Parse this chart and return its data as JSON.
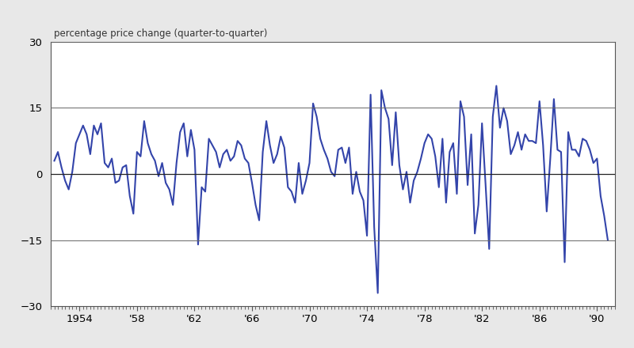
{
  "title": "percentage price change (quarter-to-quarter)",
  "xlim": [
    1952.0,
    1991.25
  ],
  "ylim": [
    -30,
    30
  ],
  "yticks": [
    -30,
    -15,
    0,
    15,
    30
  ],
  "xtick_labels": [
    "1954",
    "'58",
    "'62",
    "'66",
    "'70",
    "'74",
    "'78",
    "'82",
    "'86",
    "'90"
  ],
  "xtick_positions": [
    1954,
    1958,
    1962,
    1966,
    1970,
    1974,
    1978,
    1982,
    1986,
    1990
  ],
  "line_color": "#3344aa",
  "line_width": 1.5,
  "background_color": "#ffffff",
  "fig_background": "#e8e8e8",
  "quarters": [
    1952.25,
    1952.5,
    1952.75,
    1953.0,
    1953.25,
    1953.5,
    1953.75,
    1954.0,
    1954.25,
    1954.5,
    1954.75,
    1955.0,
    1955.25,
    1955.5,
    1955.75,
    1956.0,
    1956.25,
    1956.5,
    1956.75,
    1957.0,
    1957.25,
    1957.5,
    1957.75,
    1958.0,
    1958.25,
    1958.5,
    1958.75,
    1959.0,
    1959.25,
    1959.5,
    1959.75,
    1960.0,
    1960.25,
    1960.5,
    1960.75,
    1961.0,
    1961.25,
    1961.5,
    1961.75,
    1962.0,
    1962.25,
    1962.5,
    1962.75,
    1963.0,
    1963.25,
    1963.5,
    1963.75,
    1964.0,
    1964.25,
    1964.5,
    1964.75,
    1965.0,
    1965.25,
    1965.5,
    1965.75,
    1966.0,
    1966.25,
    1966.5,
    1966.75,
    1967.0,
    1967.25,
    1967.5,
    1967.75,
    1968.0,
    1968.25,
    1968.5,
    1968.75,
    1969.0,
    1969.25,
    1969.5,
    1969.75,
    1970.0,
    1970.25,
    1970.5,
    1970.75,
    1971.0,
    1971.25,
    1971.5,
    1971.75,
    1972.0,
    1972.25,
    1972.5,
    1972.75,
    1973.0,
    1973.25,
    1973.5,
    1973.75,
    1974.0,
    1974.25,
    1974.5,
    1974.75,
    1975.0,
    1975.25,
    1975.5,
    1975.75,
    1976.0,
    1976.25,
    1976.5,
    1976.75,
    1977.0,
    1977.25,
    1977.5,
    1977.75,
    1978.0,
    1978.25,
    1978.5,
    1978.75,
    1979.0,
    1979.25,
    1979.5,
    1979.75,
    1980.0,
    1980.25,
    1980.5,
    1980.75,
    1981.0,
    1981.25,
    1981.5,
    1981.75,
    1982.0,
    1982.25,
    1982.5,
    1982.75,
    1983.0,
    1983.25,
    1983.5,
    1983.75,
    1984.0,
    1984.25,
    1984.5,
    1984.75,
    1985.0,
    1985.25,
    1985.5,
    1985.75,
    1986.0,
    1986.25,
    1986.5,
    1986.75,
    1987.0,
    1987.25,
    1987.5,
    1987.75,
    1988.0,
    1988.25,
    1988.5,
    1988.75,
    1989.0,
    1989.25,
    1989.5,
    1989.75,
    1990.0,
    1990.25,
    1990.5,
    1990.75
  ],
  "values": [
    3.0,
    5.0,
    1.5,
    -1.5,
    -3.5,
    0.5,
    7.0,
    9.0,
    11.0,
    9.0,
    4.5,
    11.0,
    9.0,
    11.5,
    2.5,
    1.5,
    3.5,
    -2.0,
    -1.5,
    1.5,
    2.0,
    -5.0,
    -9.0,
    5.0,
    4.0,
    12.0,
    7.0,
    4.5,
    3.0,
    -0.5,
    2.5,
    -2.0,
    -3.5,
    -7.0,
    2.5,
    9.5,
    11.5,
    4.0,
    10.0,
    5.5,
    -16.0,
    -3.0,
    -4.0,
    8.0,
    6.5,
    5.0,
    1.5,
    4.5,
    5.5,
    3.0,
    4.0,
    7.5,
    6.5,
    3.5,
    2.5,
    -2.0,
    -7.0,
    -10.5,
    5.0,
    12.0,
    6.5,
    2.5,
    4.5,
    8.5,
    6.0,
    -3.0,
    -4.0,
    -6.5,
    2.5,
    -4.5,
    -1.5,
    2.5,
    16.0,
    13.0,
    8.0,
    5.5,
    3.5,
    0.5,
    -0.5,
    5.5,
    6.0,
    2.5,
    6.0,
    -4.5,
    0.5,
    -4.0,
    -6.0,
    -14.0,
    18.0,
    -12.0,
    -27.0,
    19.0,
    15.0,
    12.5,
    2.0,
    14.0,
    2.0,
    -3.5,
    0.5,
    -6.5,
    -1.5,
    0.5,
    3.5,
    7.0,
    9.0,
    8.0,
    4.0,
    -3.0,
    8.0,
    -6.5,
    5.0,
    7.0,
    -4.5,
    16.5,
    13.0,
    -2.5,
    9.0,
    -13.5,
    -7.0,
    11.5,
    -2.5,
    -17.0,
    13.0,
    20.0,
    10.5,
    15.0,
    12.0,
    4.5,
    6.5,
    9.5,
    5.5,
    9.0,
    7.5,
    7.5,
    7.0,
    16.5,
    6.5,
    -8.5,
    3.5,
    17.0,
    5.5,
    5.0,
    -20.0,
    9.5,
    5.5,
    5.5,
    4.0,
    8.0,
    7.5,
    5.5,
    2.5,
    3.5,
    -5.0,
    -9.5,
    -15.0
  ]
}
